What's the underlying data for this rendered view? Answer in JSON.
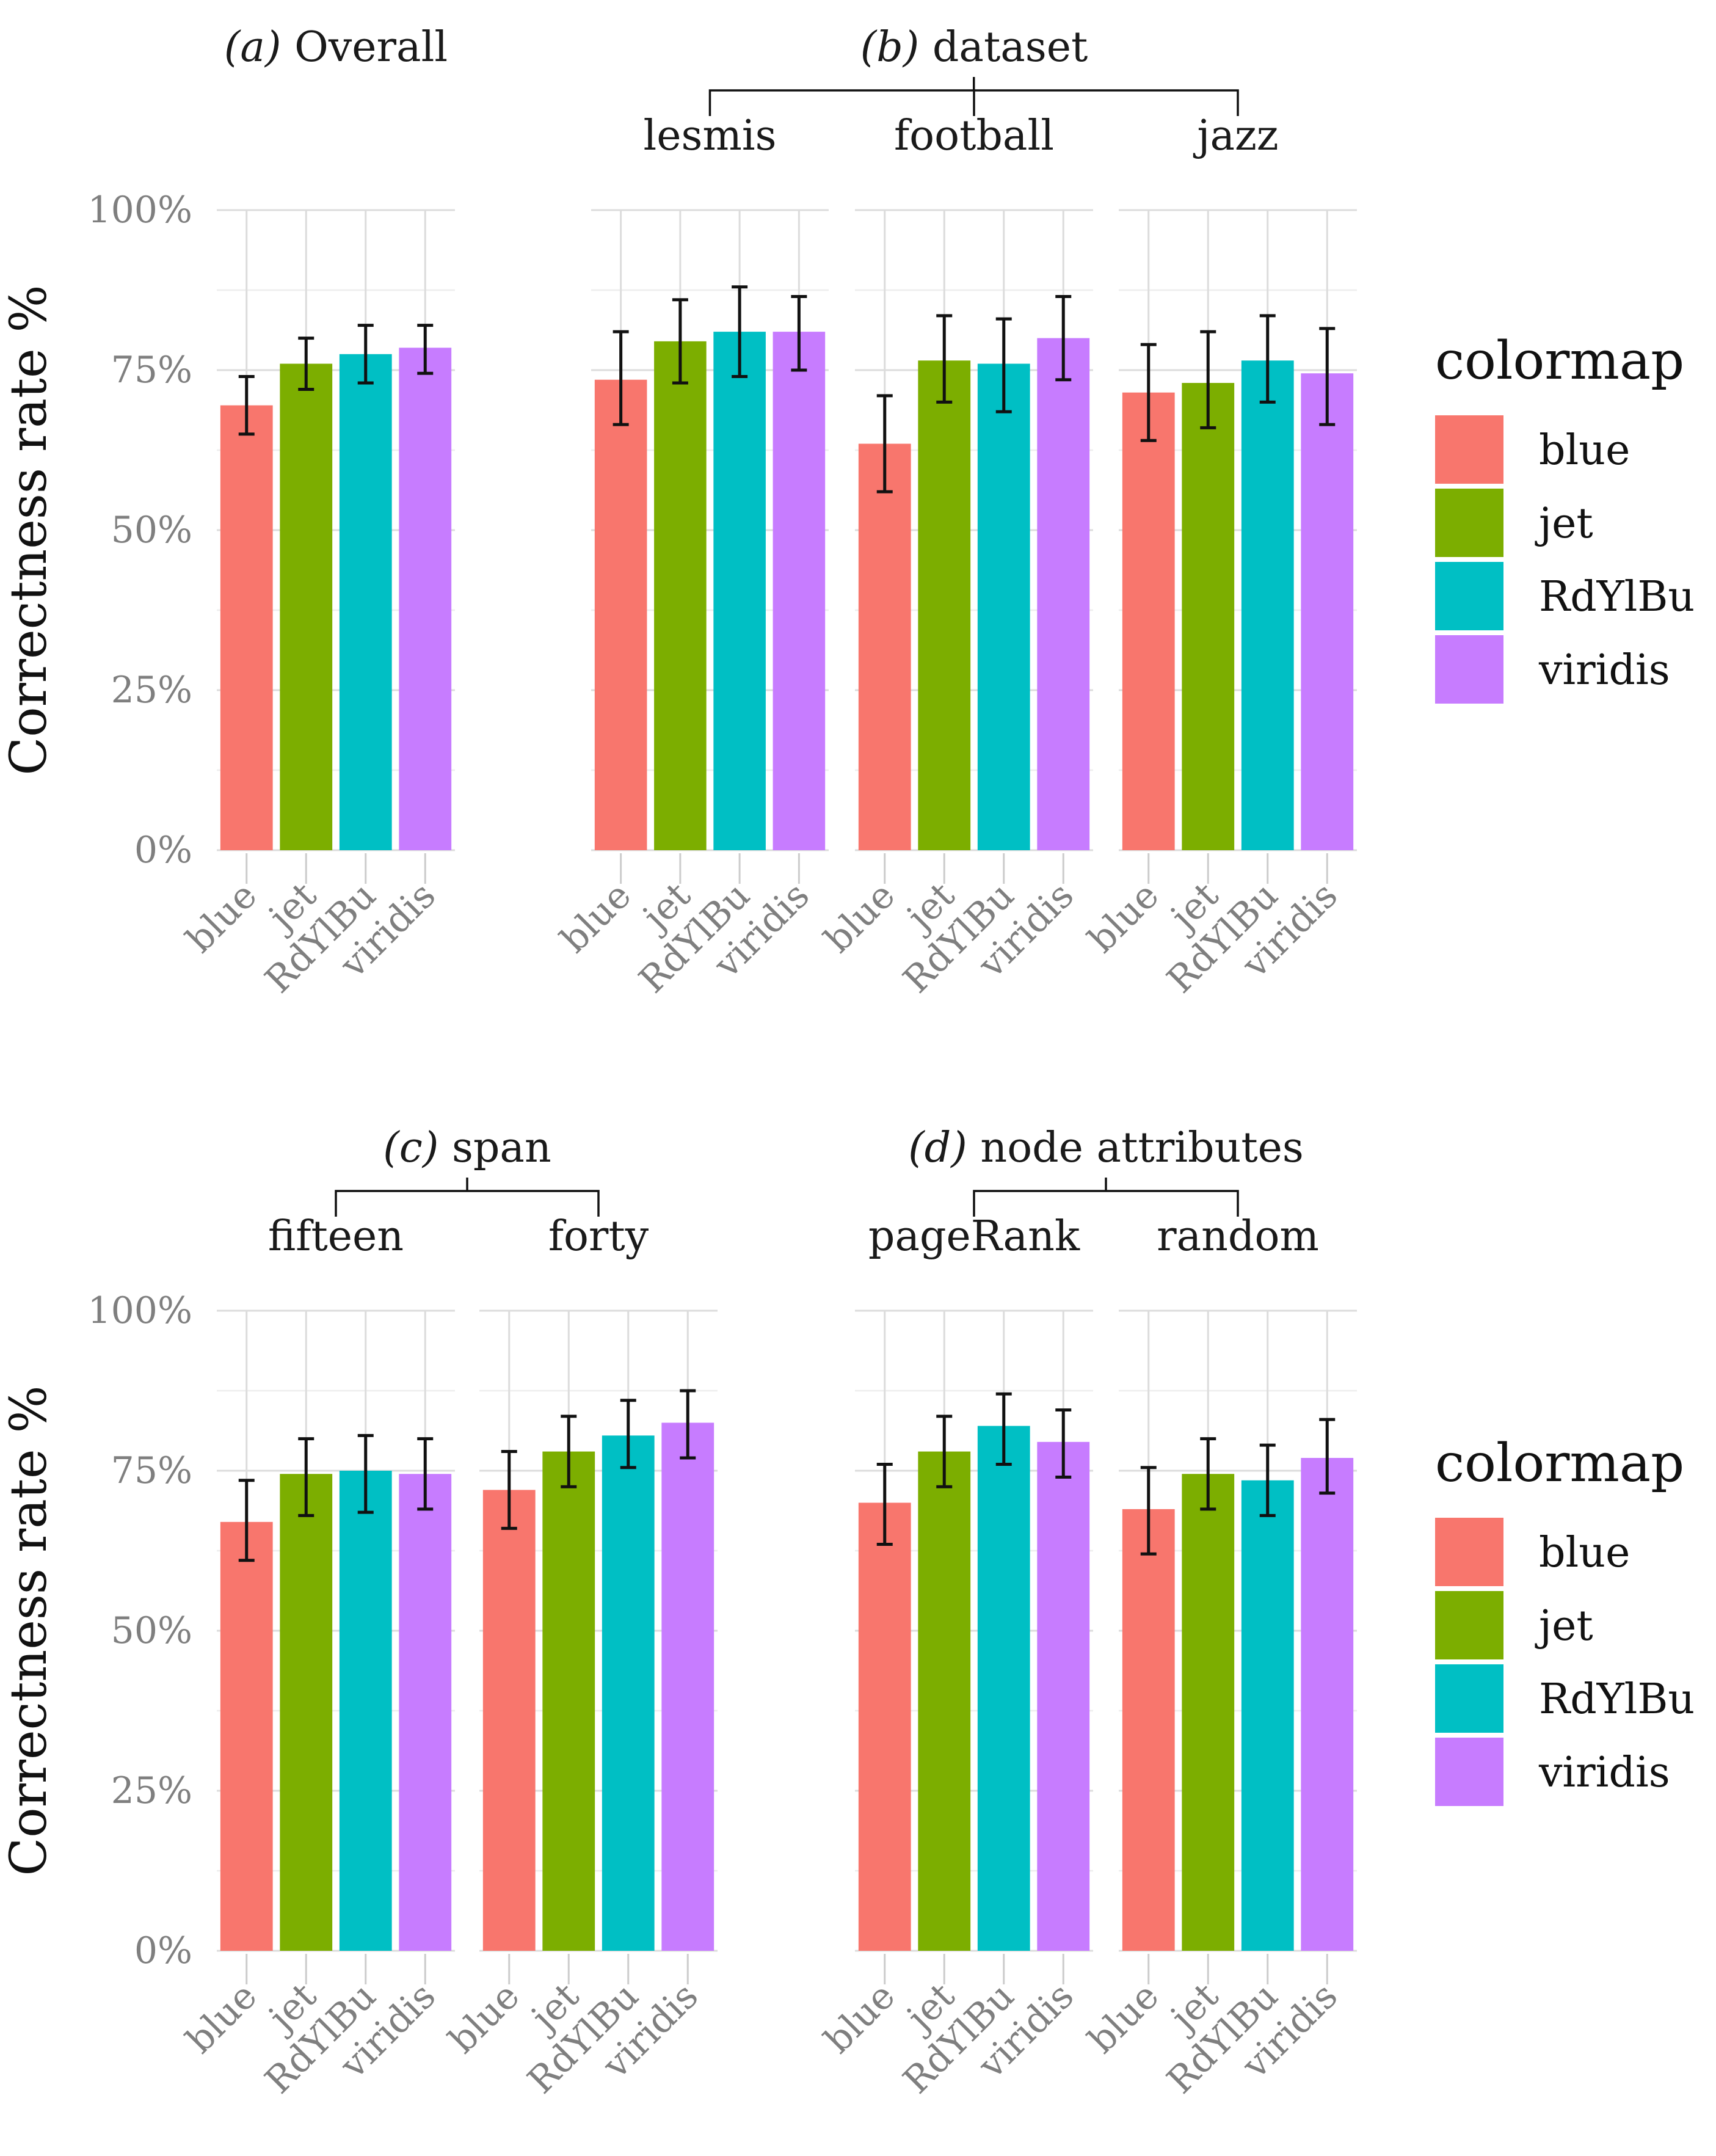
{
  "y_axis_label": "Correctness rate %",
  "legend": {
    "title": "colormap",
    "items": [
      {
        "name": "blue",
        "color": "#F8766D"
      },
      {
        "name": "jet",
        "color": "#7CAE00"
      },
      {
        "name": "RdYlBu",
        "color": "#00BFC4"
      },
      {
        "name": "viridis",
        "color": "#C77CFF"
      }
    ]
  },
  "chart_data": [
    {
      "type": "bar",
      "id": "a",
      "title_prefix": "(a)",
      "title": "Overall",
      "ylim": [
        0,
        100
      ],
      "yticks": [
        "0%",
        "25%",
        "50%",
        "75%",
        "100%"
      ],
      "categories": [
        "blue",
        "jet",
        "RdYlBu",
        "viridis"
      ],
      "facets": [
        {
          "label": "",
          "values": [
            69.5,
            76,
            77.5,
            78.5
          ],
          "ci_low": [
            65,
            72,
            73,
            74.5
          ],
          "ci_high": [
            74,
            80,
            82,
            82
          ]
        }
      ]
    },
    {
      "type": "bar",
      "id": "b",
      "title_prefix": "(b)",
      "title": "dataset",
      "ylim": [
        0,
        100
      ],
      "yticks": [
        "0%",
        "25%",
        "50%",
        "75%",
        "100%"
      ],
      "categories": [
        "blue",
        "jet",
        "RdYlBu",
        "viridis"
      ],
      "facets": [
        {
          "label": "lesmis",
          "values": [
            73.5,
            79.5,
            81,
            81
          ],
          "ci_low": [
            66.5,
            73,
            74,
            75
          ],
          "ci_high": [
            81,
            86,
            88,
            86.5
          ]
        },
        {
          "label": "football",
          "values": [
            63.5,
            76.5,
            76,
            80
          ],
          "ci_low": [
            56,
            70,
            68.5,
            73.5
          ],
          "ci_high": [
            71,
            83.5,
            83,
            86.5
          ]
        },
        {
          "label": "jazz",
          "values": [
            71.5,
            73,
            76.5,
            74.5
          ],
          "ci_low": [
            64,
            66,
            70,
            66.5
          ],
          "ci_high": [
            79,
            81,
            83.5,
            81.5
          ]
        }
      ]
    },
    {
      "type": "bar",
      "id": "c",
      "title_prefix": "(c)",
      "title": "span",
      "ylim": [
        0,
        100
      ],
      "yticks": [
        "0%",
        "25%",
        "50%",
        "75%",
        "100%"
      ],
      "categories": [
        "blue",
        "jet",
        "RdYlBu",
        "viridis"
      ],
      "facets": [
        {
          "label": "fifteen",
          "values": [
            67,
            74.5,
            75,
            74.5
          ],
          "ci_low": [
            61,
            68,
            68.5,
            69
          ],
          "ci_high": [
            73.5,
            80,
            80.5,
            80
          ]
        },
        {
          "label": "forty",
          "values": [
            72,
            78,
            80.5,
            82.5
          ],
          "ci_low": [
            66,
            72.5,
            75.5,
            77
          ],
          "ci_high": [
            78,
            83.5,
            86,
            87.5
          ]
        }
      ]
    },
    {
      "type": "bar",
      "id": "d",
      "title_prefix": "(d)",
      "title": "node attributes",
      "ylim": [
        0,
        100
      ],
      "yticks": [
        "0%",
        "25%",
        "50%",
        "75%",
        "100%"
      ],
      "categories": [
        "blue",
        "jet",
        "RdYlBu",
        "viridis"
      ],
      "facets": [
        {
          "label": "pageRank",
          "values": [
            70,
            78,
            82,
            79.5
          ],
          "ci_low": [
            63.5,
            72.5,
            76,
            74
          ],
          "ci_high": [
            76,
            83.5,
            87,
            84.5
          ]
        },
        {
          "label": "random",
          "values": [
            69,
            74.5,
            73.5,
            77
          ],
          "ci_low": [
            62,
            69,
            68,
            71.5
          ],
          "ci_high": [
            75.5,
            80,
            79,
            83
          ]
        }
      ]
    }
  ]
}
